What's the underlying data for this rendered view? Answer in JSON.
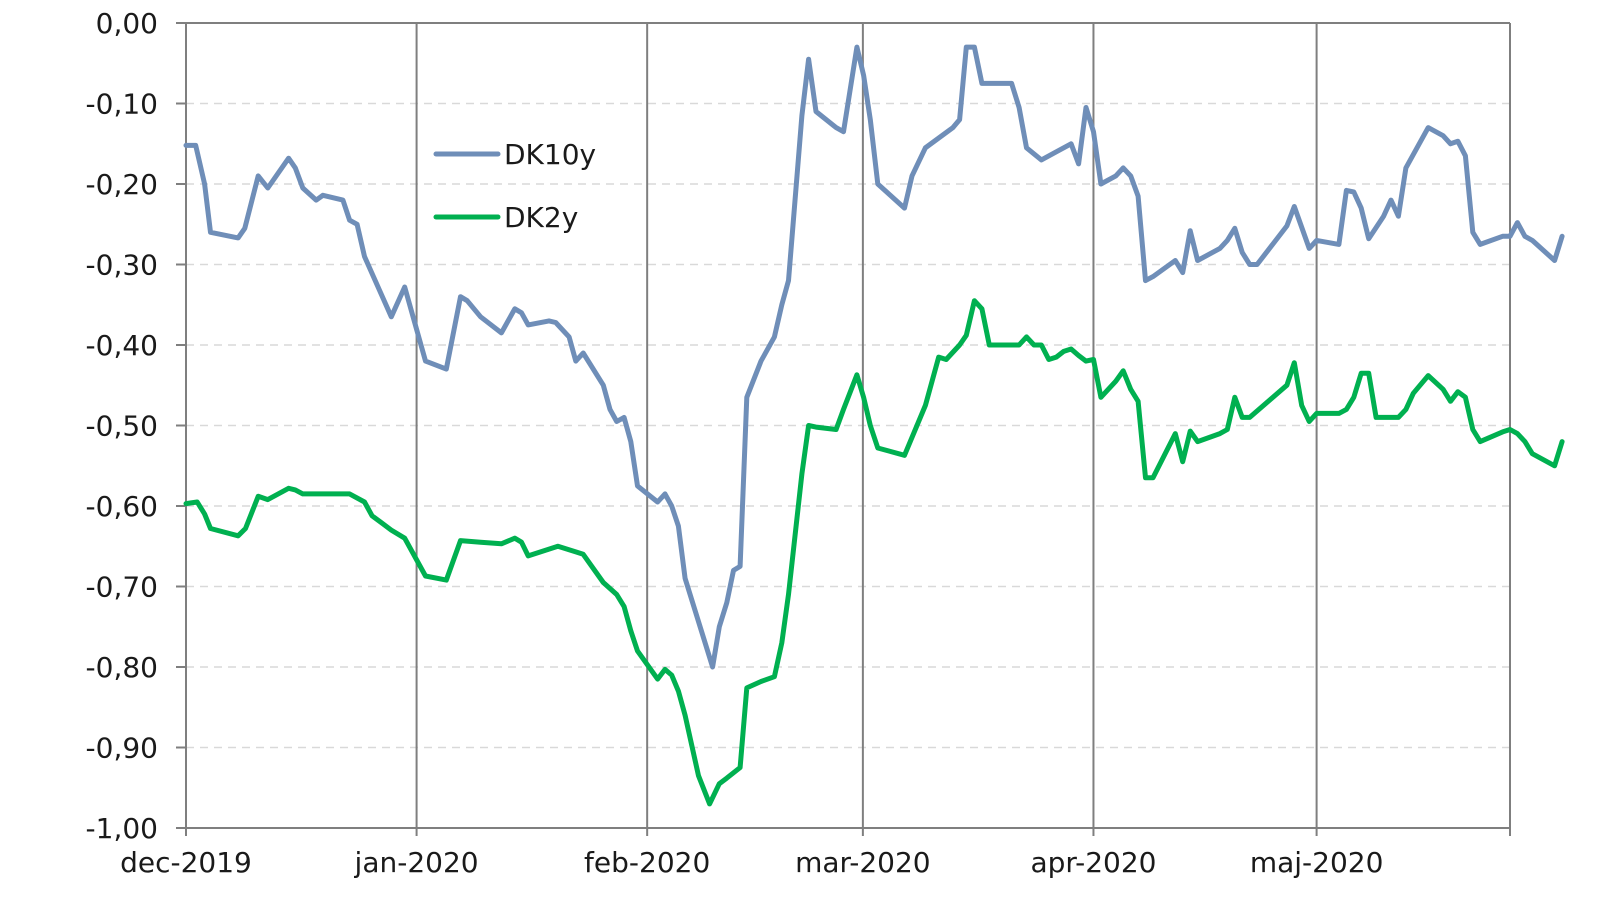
{
  "chart_data": {
    "type": "line",
    "title": "",
    "xlabel": "",
    "ylabel": "",
    "ylim": [
      -1.0,
      0.0
    ],
    "ytick_step": 0.1,
    "grid": true,
    "legend_position": "upper-left inside",
    "x_tick_labels": [
      "dec-2019",
      "jan-2020",
      "feb-2020",
      "mar-2020",
      "apr-2020",
      "maj-2020"
    ],
    "x_tick_days": [
      0,
      31,
      62,
      91,
      122,
      152
    ],
    "x_range_days": [
      0,
      178
    ],
    "y_tick_labels": [
      "0,00",
      "-0,10",
      "-0,20",
      "-0,30",
      "-0,40",
      "-0,50",
      "-0,60",
      "-0,70",
      "-0,80",
      "-0,90",
      "-1,00"
    ],
    "series": [
      {
        "name": "DK10y",
        "color": "#6f8eb8",
        "points": [
          [
            0,
            -0.152
          ],
          [
            1.3,
            -0.152
          ],
          [
            2.5,
            -0.2
          ],
          [
            3.3,
            -0.26
          ],
          [
            7,
            -0.267
          ],
          [
            7.9,
            -0.255
          ],
          [
            9.7,
            -0.19
          ],
          [
            11,
            -0.205
          ],
          [
            13.8,
            -0.168
          ],
          [
            14.7,
            -0.18
          ],
          [
            15.7,
            -0.205
          ],
          [
            17.5,
            -0.22
          ],
          [
            18.4,
            -0.214
          ],
          [
            21.1,
            -0.22
          ],
          [
            22,
            -0.245
          ],
          [
            23,
            -0.25
          ],
          [
            24,
            -0.29
          ],
          [
            27.6,
            -0.365
          ],
          [
            29.4,
            -0.328
          ],
          [
            32.2,
            -0.42
          ],
          [
            35,
            -0.43
          ],
          [
            36.9,
            -0.34
          ],
          [
            37.8,
            -0.345
          ],
          [
            39.6,
            -0.365
          ],
          [
            42.4,
            -0.385
          ],
          [
            44.2,
            -0.355
          ],
          [
            45.1,
            -0.36
          ],
          [
            46,
            -0.375
          ],
          [
            48.8,
            -0.37
          ],
          [
            49.7,
            -0.372
          ],
          [
            51.5,
            -0.39
          ],
          [
            52.4,
            -0.42
          ],
          [
            53.4,
            -0.41
          ],
          [
            56.1,
            -0.45
          ],
          [
            57,
            -0.48
          ],
          [
            57.9,
            -0.495
          ],
          [
            58.9,
            -0.49
          ],
          [
            59.8,
            -0.52
          ],
          [
            60.7,
            -0.575
          ],
          [
            63.4,
            -0.595
          ],
          [
            64.4,
            -0.585
          ],
          [
            65.3,
            -0.6
          ],
          [
            66.2,
            -0.625
          ],
          [
            67.1,
            -0.69
          ],
          [
            70.8,
            -0.8
          ],
          [
            71.7,
            -0.75
          ],
          [
            72.7,
            -0.72
          ],
          [
            73.6,
            -0.68
          ],
          [
            74.5,
            -0.675
          ],
          [
            75.4,
            -0.465
          ],
          [
            77.3,
            -0.42
          ],
          [
            79.1,
            -0.39
          ],
          [
            80.1,
            -0.35
          ],
          [
            81,
            -0.32
          ],
          [
            82.8,
            -0.115
          ],
          [
            83.7,
            -0.045
          ],
          [
            84.7,
            -0.11
          ],
          [
            87.4,
            -0.13
          ],
          [
            88.4,
            -0.135
          ],
          [
            90.2,
            -0.03
          ],
          [
            91.1,
            -0.065
          ],
          [
            92,
            -0.12
          ],
          [
            93,
            -0.2
          ],
          [
            96.6,
            -0.23
          ],
          [
            97.6,
            -0.19
          ],
          [
            99.4,
            -0.155
          ],
          [
            103.1,
            -0.13
          ],
          [
            104,
            -0.12
          ],
          [
            104.9,
            -0.03
          ],
          [
            106,
            -0.03
          ],
          [
            107,
            -0.075
          ],
          [
            111,
            -0.075
          ],
          [
            112,
            -0.105
          ],
          [
            113,
            -0.155
          ],
          [
            115,
            -0.17
          ],
          [
            117,
            -0.16
          ],
          [
            118,
            -0.155
          ],
          [
            119,
            -0.15
          ],
          [
            120,
            -0.175
          ],
          [
            121,
            -0.105
          ],
          [
            122,
            -0.135
          ],
          [
            123,
            -0.2
          ],
          [
            125,
            -0.19
          ],
          [
            126,
            -0.18
          ],
          [
            127,
            -0.19
          ],
          [
            128,
            -0.215
          ],
          [
            129,
            -0.32
          ],
          [
            130,
            -0.315
          ],
          [
            133,
            -0.295
          ],
          [
            134,
            -0.31
          ],
          [
            135,
            -0.258
          ],
          [
            136,
            -0.295
          ],
          [
            139,
            -0.28
          ],
          [
            140,
            -0.27
          ],
          [
            141,
            -0.255
          ],
          [
            142,
            -0.285
          ],
          [
            143,
            -0.3
          ],
          [
            144,
            -0.3
          ],
          [
            148,
            -0.252
          ],
          [
            149,
            -0.228
          ],
          [
            151,
            -0.28
          ],
          [
            152,
            -0.27
          ],
          [
            155,
            -0.275
          ],
          [
            156,
            -0.208
          ],
          [
            157,
            -0.21
          ],
          [
            158,
            -0.23
          ],
          [
            159,
            -0.268
          ],
          [
            161,
            -0.24
          ],
          [
            162,
            -0.22
          ],
          [
            163,
            -0.24
          ],
          [
            164,
            -0.18
          ],
          [
            167,
            -0.13
          ],
          [
            169,
            -0.14
          ],
          [
            170,
            -0.15
          ],
          [
            171,
            -0.147
          ],
          [
            172,
            -0.165
          ],
          [
            173,
            -0.26
          ],
          [
            174,
            -0.275
          ],
          [
            177,
            -0.265
          ],
          [
            178,
            -0.265
          ],
          [
            179,
            -0.248
          ],
          [
            180,
            -0.265
          ],
          [
            181,
            -0.27
          ],
          [
            184,
            -0.295
          ],
          [
            185,
            -0.265
          ]
        ]
      },
      {
        "name": "DK2y",
        "color": "#00b050",
        "points": [
          [
            0,
            -0.597
          ],
          [
            1.5,
            -0.595
          ],
          [
            2.5,
            -0.61
          ],
          [
            3.3,
            -0.628
          ],
          [
            7,
            -0.637
          ],
          [
            8,
            -0.628
          ],
          [
            9.7,
            -0.588
          ],
          [
            11,
            -0.592
          ],
          [
            13.8,
            -0.578
          ],
          [
            14.7,
            -0.58
          ],
          [
            15.7,
            -0.585
          ],
          [
            20,
            -0.585
          ],
          [
            22,
            -0.585
          ],
          [
            24,
            -0.595
          ],
          [
            25,
            -0.612
          ],
          [
            27.6,
            -0.63
          ],
          [
            29.4,
            -0.64
          ],
          [
            32.2,
            -0.687
          ],
          [
            35,
            -0.692
          ],
          [
            36.9,
            -0.643
          ],
          [
            39.6,
            -0.645
          ],
          [
            42.4,
            -0.647
          ],
          [
            44.2,
            -0.64
          ],
          [
            45.1,
            -0.645
          ],
          [
            46,
            -0.662
          ],
          [
            50,
            -0.65
          ],
          [
            52.4,
            -0.657
          ],
          [
            53.4,
            -0.66
          ],
          [
            56.1,
            -0.695
          ],
          [
            57.9,
            -0.71
          ],
          [
            58.9,
            -0.725
          ],
          [
            59.8,
            -0.755
          ],
          [
            60.7,
            -0.78
          ],
          [
            63.4,
            -0.815
          ],
          [
            64.4,
            -0.803
          ],
          [
            65.3,
            -0.81
          ],
          [
            66.2,
            -0.83
          ],
          [
            67.1,
            -0.86
          ],
          [
            68.9,
            -0.935
          ],
          [
            70.4,
            -0.97
          ],
          [
            71.7,
            -0.945
          ],
          [
            72.7,
            -0.938
          ],
          [
            74.5,
            -0.925
          ],
          [
            75.4,
            -0.826
          ],
          [
            77.3,
            -0.818
          ],
          [
            79.1,
            -0.812
          ],
          [
            80.1,
            -0.77
          ],
          [
            81,
            -0.71
          ],
          [
            82.8,
            -0.56
          ],
          [
            83.7,
            -0.5
          ],
          [
            84.7,
            -0.502
          ],
          [
            87.4,
            -0.505
          ],
          [
            88.4,
            -0.48
          ],
          [
            90.2,
            -0.437
          ],
          [
            91.1,
            -0.465
          ],
          [
            92,
            -0.5
          ],
          [
            93,
            -0.528
          ],
          [
            96.6,
            -0.537
          ],
          [
            99.4,
            -0.475
          ],
          [
            101.2,
            -0.415
          ],
          [
            102.2,
            -0.418
          ],
          [
            104,
            -0.4
          ],
          [
            104.9,
            -0.388
          ],
          [
            106,
            -0.345
          ],
          [
            107,
            -0.355
          ],
          [
            108,
            -0.4
          ],
          [
            112,
            -0.4
          ],
          [
            113,
            -0.39
          ],
          [
            114,
            -0.4
          ],
          [
            115,
            -0.4
          ],
          [
            116,
            -0.418
          ],
          [
            117,
            -0.415
          ],
          [
            118,
            -0.408
          ],
          [
            119,
            -0.405
          ],
          [
            120,
            -0.413
          ],
          [
            121,
            -0.42
          ],
          [
            122,
            -0.418
          ],
          [
            123,
            -0.465
          ],
          [
            125,
            -0.445
          ],
          [
            126,
            -0.432
          ],
          [
            127,
            -0.455
          ],
          [
            128,
            -0.47
          ],
          [
            129,
            -0.565
          ],
          [
            130,
            -0.565
          ],
          [
            133,
            -0.51
          ],
          [
            134,
            -0.545
          ],
          [
            135,
            -0.507
          ],
          [
            136,
            -0.52
          ],
          [
            139,
            -0.51
          ],
          [
            140,
            -0.505
          ],
          [
            141,
            -0.465
          ],
          [
            142,
            -0.49
          ],
          [
            143,
            -0.49
          ],
          [
            148,
            -0.45
          ],
          [
            149,
            -0.422
          ],
          [
            150,
            -0.475
          ],
          [
            151,
            -0.495
          ],
          [
            152,
            -0.485
          ],
          [
            155,
            -0.485
          ],
          [
            156,
            -0.48
          ],
          [
            157,
            -0.465
          ],
          [
            158,
            -0.435
          ],
          [
            159,
            -0.435
          ],
          [
            160,
            -0.49
          ],
          [
            163,
            -0.49
          ],
          [
            164,
            -0.48
          ],
          [
            165,
            -0.46
          ],
          [
            167,
            -0.438
          ],
          [
            169,
            -0.455
          ],
          [
            170,
            -0.47
          ],
          [
            171,
            -0.458
          ],
          [
            172,
            -0.465
          ],
          [
            173,
            -0.505
          ],
          [
            174,
            -0.52
          ],
          [
            177,
            -0.508
          ],
          [
            178,
            -0.505
          ],
          [
            179,
            -0.51
          ],
          [
            180,
            -0.52
          ],
          [
            181,
            -0.535
          ],
          [
            184,
            -0.55
          ],
          [
            185,
            -0.52
          ]
        ]
      }
    ]
  }
}
